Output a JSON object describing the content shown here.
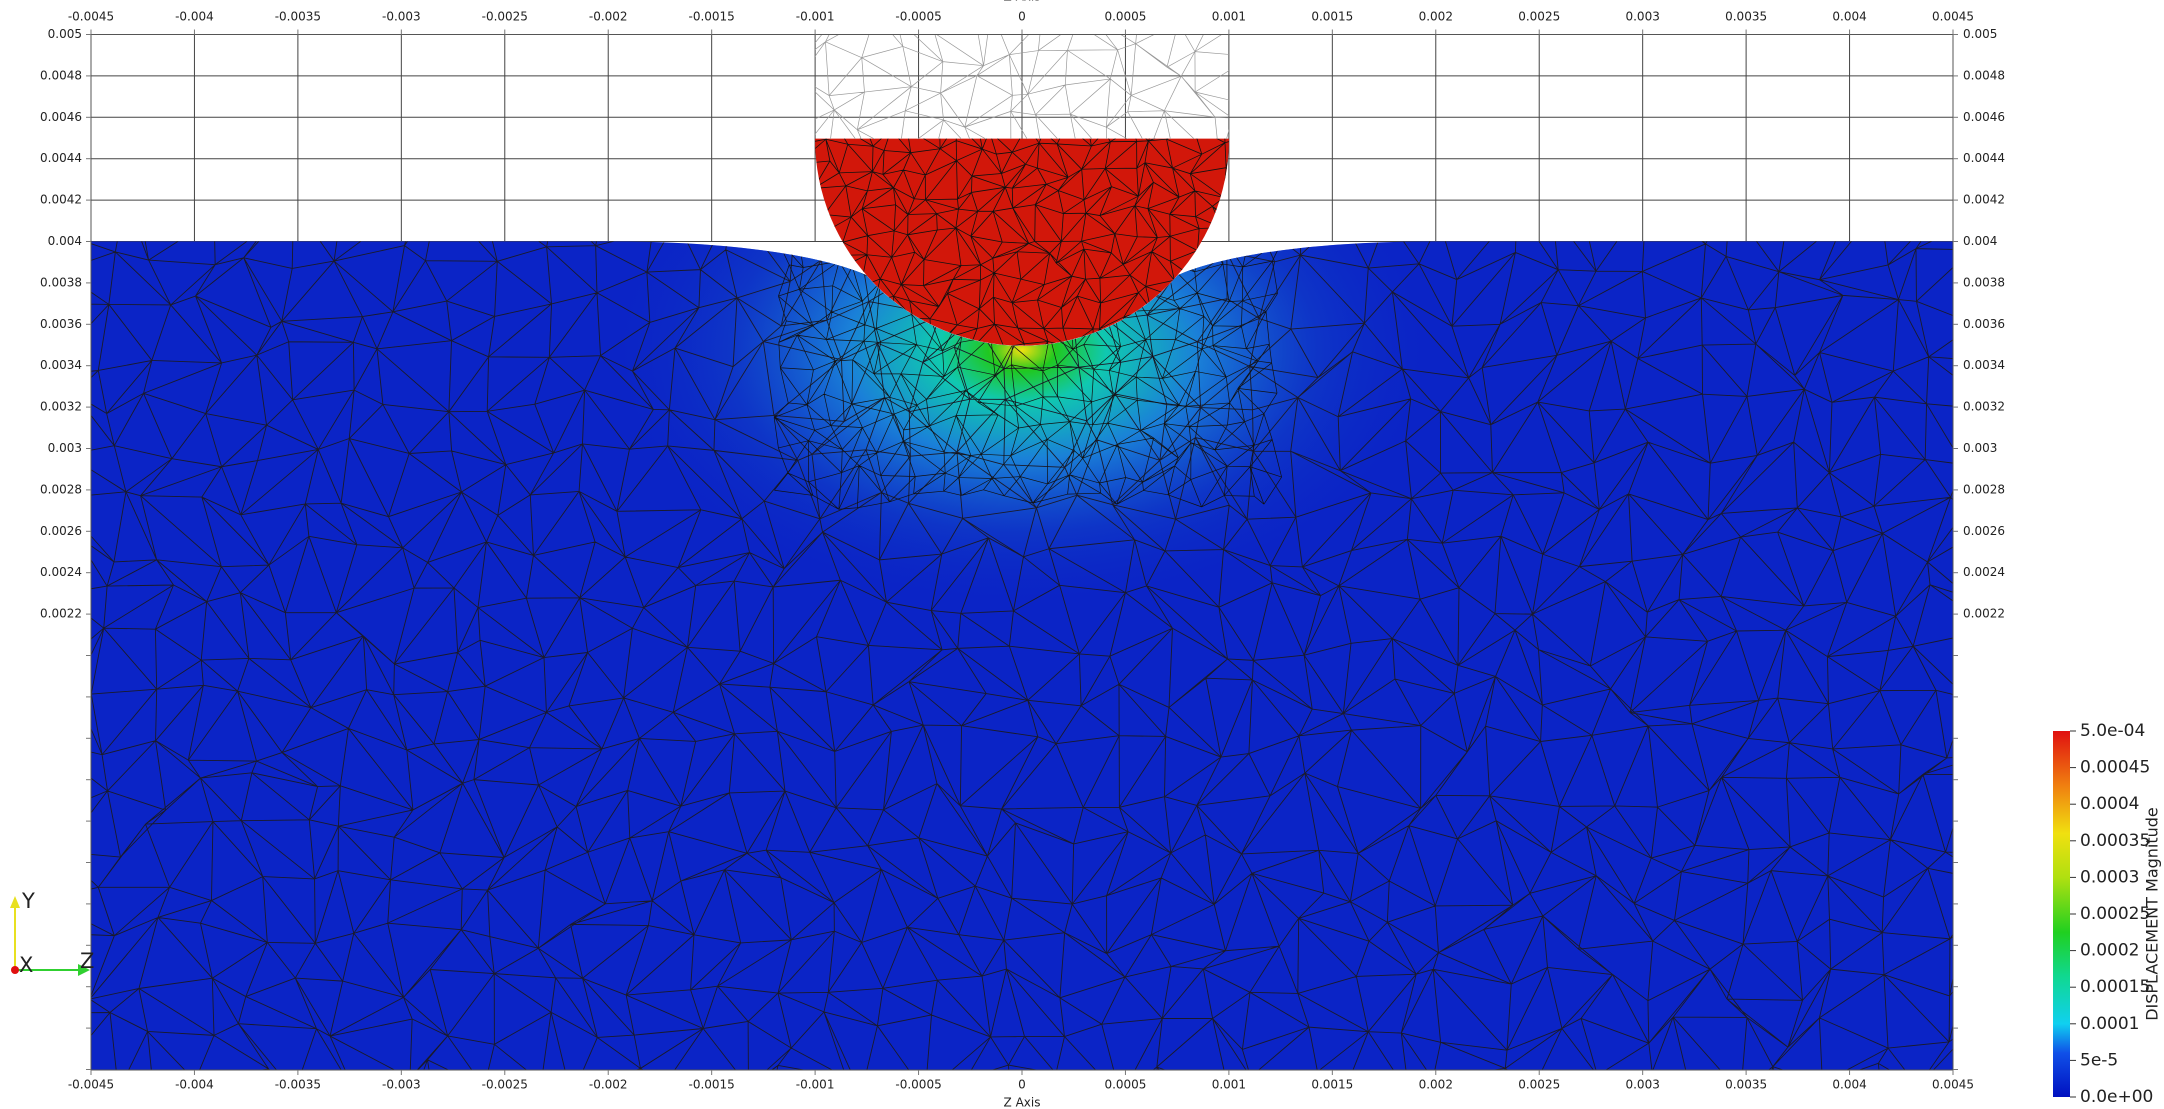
{
  "axes": {
    "title_top": "Z Axis",
    "title_bottom": "Z Axis",
    "x_ticks": [
      "-0.0045",
      "-0.004",
      "-0.0035",
      "-0.003",
      "-0.0025",
      "-0.002",
      "-0.0015",
      "-0.001",
      "-0.0005",
      "0",
      "0.0005",
      "0.001",
      "0.0015",
      "0.002",
      "0.0025",
      "0.003",
      "0.0035",
      "0.004",
      "0.0045"
    ],
    "y_ticks": [
      "0.005",
      "0.0048",
      "0.0046",
      "0.0044",
      "0.0042",
      "0.004",
      "0.0038",
      "0.0036",
      "0.0034",
      "0.0032",
      "0.003",
      "0.0028",
      "0.0026",
      "0.0024",
      "0.0022"
    ]
  },
  "colorbar": {
    "title": "DISPLACEMENT Magnitude",
    "labels": [
      "5.0e-04",
      "0.00045",
      "0.0004",
      "0.00035",
      "0.0003",
      "0.00025",
      "0.0002",
      "0.00015",
      "0.0001",
      "5e-5",
      "0.0e+00"
    ]
  },
  "orientation": {
    "y": "Y",
    "x": "X",
    "z": "Z"
  }
}
